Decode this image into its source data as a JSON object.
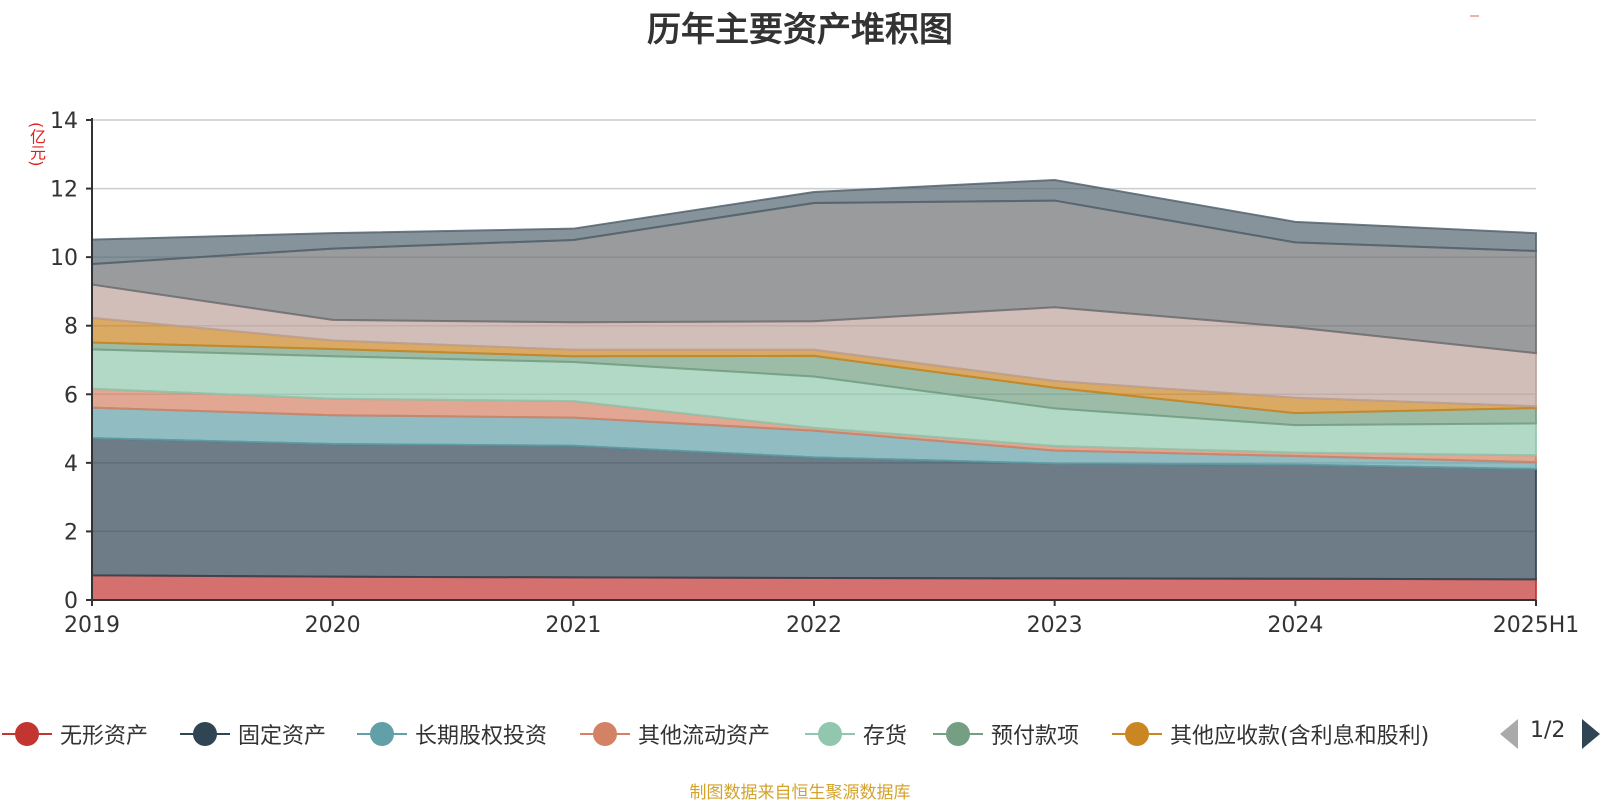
{
  "chart_data": {
    "type": "area",
    "stacked": true,
    "title": "历年主要资产堆积图",
    "unit_label": "(亿元)",
    "x": [
      "2019",
      "2020",
      "2021",
      "2022",
      "2023",
      "2024",
      "2025H1"
    ],
    "ylim": [
      0,
      14
    ],
    "yticks": [
      0,
      2,
      4,
      6,
      8,
      10,
      12,
      14
    ],
    "grid": true,
    "legend_position": "bottom",
    "series": [
      {
        "name": "无形资产",
        "values": [
          0.72,
          0.68,
          0.66,
          0.64,
          0.63,
          0.62,
          0.6
        ],
        "color": "#c23531"
      },
      {
        "name": "固定资产",
        "values": [
          4.0,
          3.87,
          3.84,
          3.52,
          3.35,
          3.33,
          3.22
        ],
        "color": "#2f4554"
      },
      {
        "name": "长期股权投资",
        "values": [
          0.89,
          0.84,
          0.82,
          0.78,
          0.38,
          0.25,
          0.2
        ],
        "color": "#61a0a8"
      },
      {
        "name": "其他流动资产",
        "values": [
          0.55,
          0.48,
          0.48,
          0.08,
          0.13,
          0.1,
          0.2
        ],
        "color": "#d48265"
      },
      {
        "name": "存货",
        "values": [
          1.15,
          1.24,
          1.14,
          1.5,
          1.1,
          0.8,
          0.93
        ],
        "color": "#91c7ae"
      },
      {
        "name": "预付款项",
        "values": [
          0.2,
          0.21,
          0.17,
          0.6,
          0.6,
          0.35,
          0.45
        ],
        "color": "#749f83"
      },
      {
        "name": "其他应收款(含利息和股利)",
        "values": [
          0.72,
          0.25,
          0.19,
          0.18,
          0.2,
          0.45,
          0.05
        ],
        "color": "#ca8622"
      },
      {
        "name": "",
        "values": [
          0.97,
          0.6,
          0.8,
          0.83,
          2.15,
          2.05,
          1.55
        ],
        "color": "#bda29a"
      },
      {
        "name": "",
        "values": [
          0.6,
          2.08,
          2.4,
          3.45,
          3.11,
          2.48,
          2.98
        ],
        "color": "#6e7074"
      },
      {
        "name": "",
        "values": [
          0.71,
          0.45,
          0.33,
          0.32,
          0.6,
          0.6,
          0.52
        ],
        "color": "#546570"
      }
    ]
  },
  "legend": {
    "page_indicator": "1/2"
  },
  "source_note": "制图数据来自恒生聚源数据库"
}
